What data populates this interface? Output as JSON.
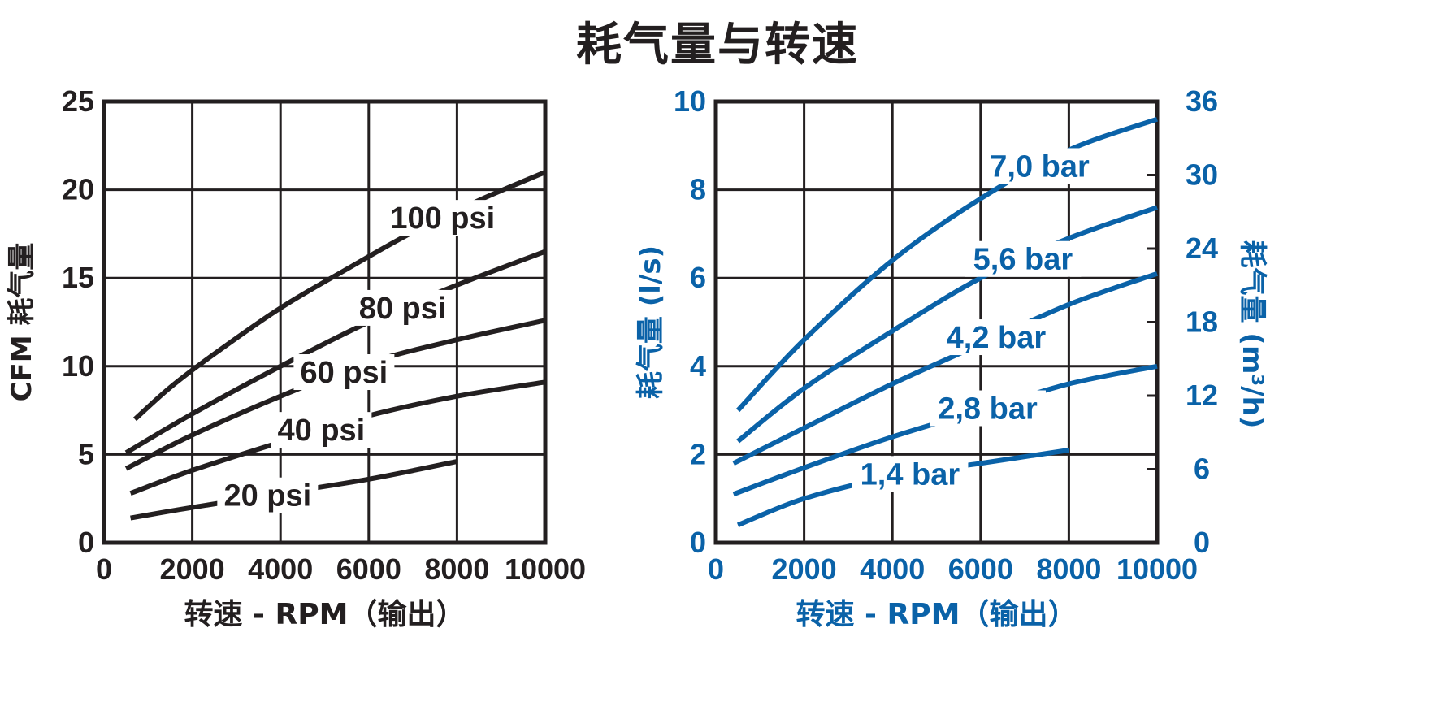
{
  "title": "耗气量与转速",
  "colors": {
    "left": "#231f20",
    "right": "#0a62a8"
  },
  "chart_data": [
    {
      "type": "line",
      "xlabel": "转速 - RPM（输出）",
      "ylabel": "CFM  耗气量",
      "xlim": [
        0,
        10000
      ],
      "ylim": [
        0,
        25
      ],
      "xticks": [
        "0",
        "2000",
        "4000",
        "6000",
        "8000",
        "10000"
      ],
      "yticks": [
        "0",
        "5",
        "10",
        "15",
        "20",
        "25"
      ],
      "grid": true,
      "series": [
        {
          "name": "100 psi",
          "x": [
            700,
            1500,
            2500,
            4000,
            5500,
            7000,
            8500,
            10000
          ],
          "values": [
            7.0,
            8.8,
            10.7,
            13.3,
            15.5,
            17.6,
            19.4,
            21.0
          ]
        },
        {
          "name": "80 psi",
          "x": [
            500,
            2000,
            4000,
            6000,
            8000,
            10000
          ],
          "values": [
            5.1,
            7.3,
            10.0,
            12.5,
            14.6,
            16.5
          ]
        },
        {
          "name": "60 psi",
          "x": [
            500,
            2000,
            4000,
            6000,
            8000,
            10000
          ],
          "values": [
            4.2,
            6.1,
            8.3,
            10.2,
            11.5,
            12.6
          ]
        },
        {
          "name": "40 psi",
          "x": [
            600,
            2000,
            4000,
            6000,
            8000,
            10000
          ],
          "values": [
            2.8,
            4.1,
            5.7,
            7.2,
            8.3,
            9.1
          ]
        },
        {
          "name": "20 psi",
          "x": [
            600,
            2000,
            4000,
            6000,
            8000
          ],
          "values": [
            1.4,
            2.0,
            2.8,
            3.6,
            4.6
          ]
        }
      ]
    },
    {
      "type": "line",
      "xlabel": "转速 - RPM（输出）",
      "ylabel": "耗气量 (l/s)",
      "ylabel_right": "耗气量 (m³/h)",
      "xlim": [
        0,
        10000
      ],
      "ylim": [
        0,
        10
      ],
      "ylim_right": [
        0,
        36
      ],
      "xticks": [
        "0",
        "2000",
        "4000",
        "6000",
        "8000",
        "10000"
      ],
      "yticks": [
        "0",
        "2",
        "4",
        "6",
        "8",
        "10"
      ],
      "yticks_right": [
        "0",
        "6",
        "12",
        "18",
        "24",
        "30",
        "36"
      ],
      "grid": true,
      "series": [
        {
          "name": "7,0 bar",
          "x": [
            500,
            2000,
            4000,
            6000,
            8000,
            10000
          ],
          "values": [
            3.0,
            4.6,
            6.4,
            7.8,
            8.9,
            9.6
          ]
        },
        {
          "name": "5,6 bar",
          "x": [
            500,
            2000,
            4000,
            6000,
            8000,
            10000
          ],
          "values": [
            2.3,
            3.5,
            4.8,
            6.0,
            6.9,
            7.6
          ]
        },
        {
          "name": "4,2 bar",
          "x": [
            400,
            2000,
            4000,
            6000,
            8000,
            10000
          ],
          "values": [
            1.8,
            2.6,
            3.6,
            4.5,
            5.4,
            6.1
          ]
        },
        {
          "name": "2,8 bar",
          "x": [
            400,
            2000,
            4000,
            6000,
            8000,
            10000
          ],
          "values": [
            1.1,
            1.7,
            2.4,
            3.0,
            3.6,
            4.0
          ]
        },
        {
          "name": "1,4 bar",
          "x": [
            500,
            2000,
            4000,
            6000,
            8000
          ],
          "values": [
            0.4,
            1.0,
            1.5,
            1.8,
            2.1
          ]
        }
      ]
    }
  ]
}
